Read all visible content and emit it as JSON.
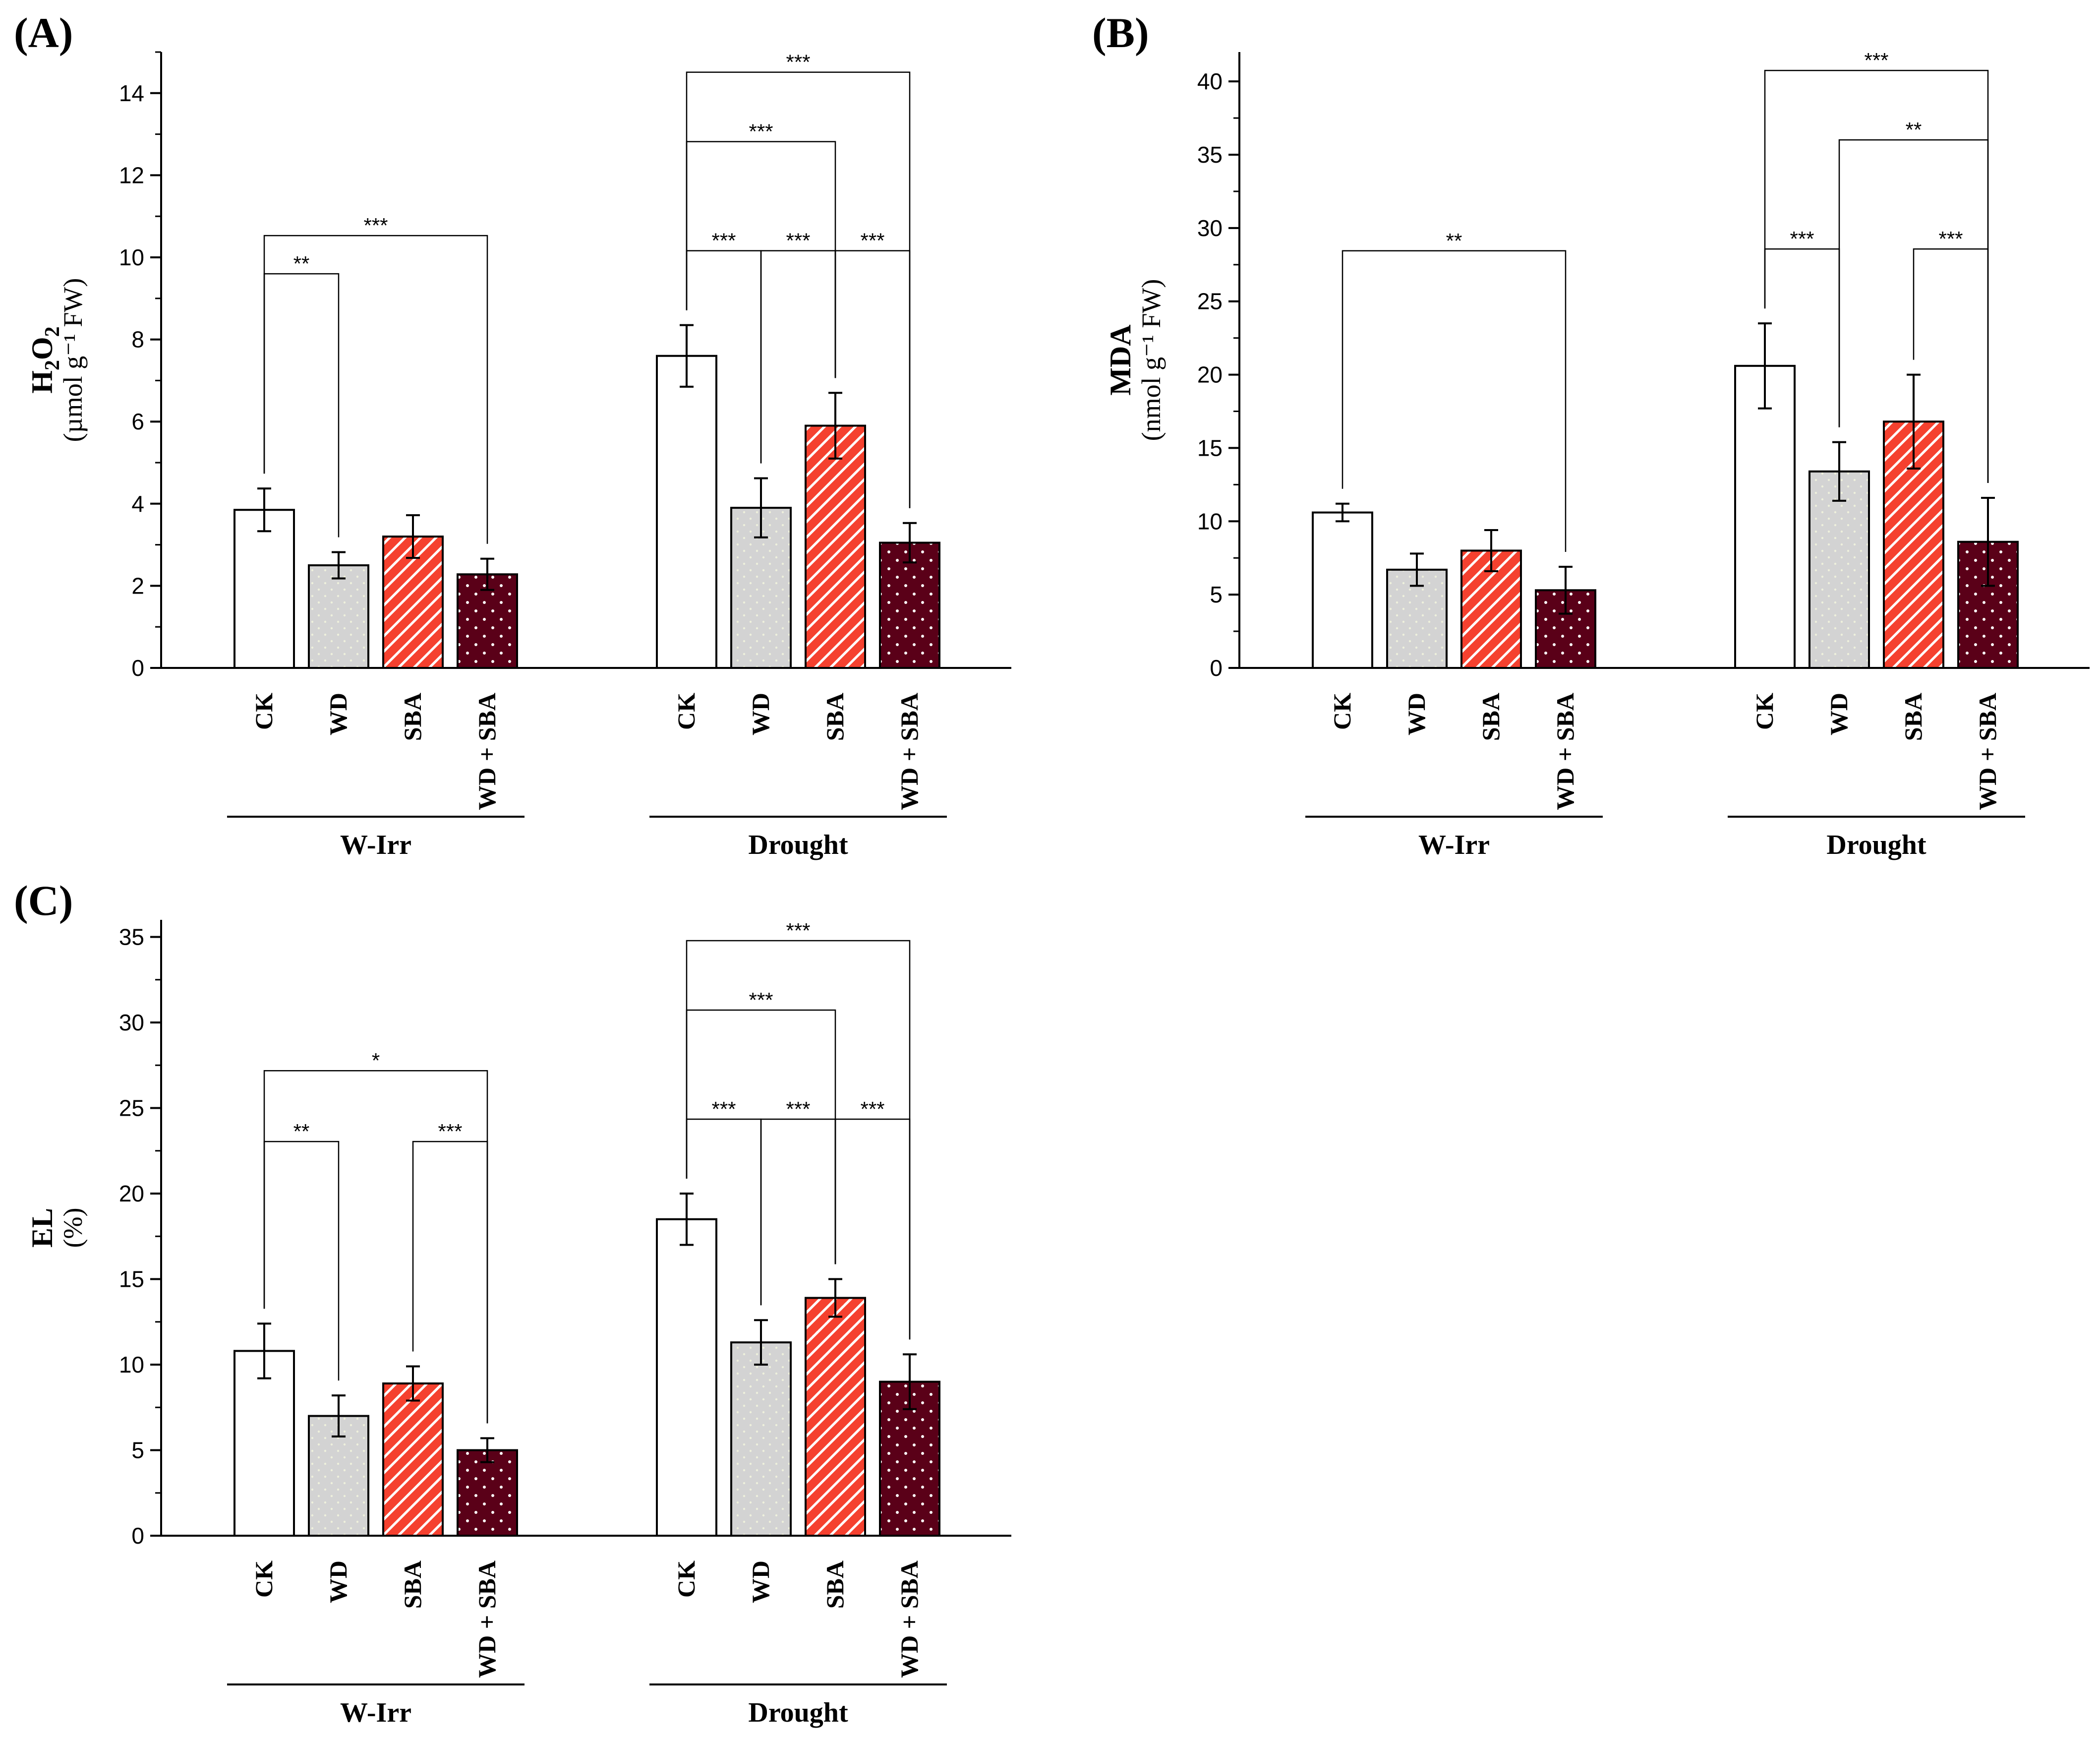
{
  "colors": {
    "CK": "#ffffff",
    "WD": "#d3d3d3",
    "SBA": "#f5412f",
    "WD + SBA": "#5a0018",
    "axis": "#000000"
  },
  "patterns": {
    "CK": "none",
    "WD": "dots",
    "SBA": "diagonal-stripes",
    "WD + SBA": "dots"
  },
  "chart_data": [
    {
      "panel": "(A)",
      "type": "bar",
      "ylabel_main": "H2O2",
      "ylabel_unit": "(µmol g⁻¹ FW)",
      "ylim": [
        0,
        15
      ],
      "yticks": [
        0,
        2,
        4,
        6,
        8,
        10,
        12,
        14
      ],
      "groups": [
        {
          "name": "W-Irr",
          "categories": [
            "CK",
            "WD",
            "SBA",
            "WD + SBA"
          ],
          "values": [
            3.85,
            2.5,
            3.2,
            2.28
          ],
          "errors": [
            0.52,
            0.32,
            0.52,
            0.38
          ]
        },
        {
          "name": "Drought",
          "categories": [
            "CK",
            "WD",
            "SBA",
            "WD + SBA"
          ],
          "values": [
            7.6,
            3.9,
            5.9,
            3.05
          ],
          "errors": [
            0.75,
            0.72,
            0.8,
            0.48
          ]
        }
      ],
      "significance": [
        {
          "group": 0,
          "from": 0,
          "to": 3,
          "label": "***"
        },
        {
          "group": 0,
          "from": 0,
          "to": 1,
          "label": "**"
        },
        {
          "group": 1,
          "from": 0,
          "to": 3,
          "label": "***"
        },
        {
          "group": 1,
          "from": 0,
          "to": 2,
          "label": "***"
        },
        {
          "group": 1,
          "from": 0,
          "to": 1,
          "label": "***"
        },
        {
          "group": 1,
          "from": 1,
          "to": 2,
          "label": "***"
        },
        {
          "group": 1,
          "from": 2,
          "to": 3,
          "label": "***"
        }
      ]
    },
    {
      "panel": "(B)",
      "type": "bar",
      "ylabel_main": "MDA",
      "ylabel_unit": "(nmol g⁻¹ FW)",
      "ylim": [
        0,
        42
      ],
      "yticks": [
        0,
        5,
        10,
        15,
        20,
        25,
        30,
        35,
        40
      ],
      "groups": [
        {
          "name": "W-Irr",
          "categories": [
            "CK",
            "WD",
            "SBA",
            "WD + SBA"
          ],
          "values": [
            10.6,
            6.7,
            8.0,
            5.3
          ],
          "errors": [
            0.6,
            1.1,
            1.4,
            1.6
          ]
        },
        {
          "name": "Drought",
          "categories": [
            "CK",
            "WD",
            "SBA",
            "WD + SBA"
          ],
          "values": [
            20.6,
            13.4,
            16.8,
            8.6
          ],
          "errors": [
            2.9,
            2.0,
            3.2,
            3.0
          ]
        }
      ],
      "significance": [
        {
          "group": 0,
          "from": 0,
          "to": 3,
          "label": "**"
        },
        {
          "group": 1,
          "from": 0,
          "to": 3,
          "label": "***"
        },
        {
          "group": 1,
          "from": 1,
          "to": 3,
          "label": "**"
        },
        {
          "group": 1,
          "from": 0,
          "to": 1,
          "label": "***"
        },
        {
          "group": 1,
          "from": 2,
          "to": 3,
          "label": "***"
        }
      ]
    },
    {
      "panel": "(C)",
      "type": "bar",
      "ylabel_main": "EL",
      "ylabel_unit": "(%)",
      "ylim": [
        0,
        36
      ],
      "yticks": [
        0,
        5,
        10,
        15,
        20,
        25,
        30,
        35
      ],
      "groups": [
        {
          "name": "W-Irr",
          "categories": [
            "CK",
            "WD",
            "SBA",
            "WD + SBA"
          ],
          "values": [
            10.8,
            7.0,
            8.9,
            5.0
          ],
          "errors": [
            1.6,
            1.2,
            1.0,
            0.7
          ]
        },
        {
          "name": "Drought",
          "categories": [
            "CK",
            "WD",
            "SBA",
            "WD + SBA"
          ],
          "values": [
            18.5,
            11.3,
            13.9,
            9.0
          ],
          "errors": [
            1.5,
            1.3,
            1.1,
            1.6
          ]
        }
      ],
      "significance": [
        {
          "group": 0,
          "from": 0,
          "to": 3,
          "label": "*"
        },
        {
          "group": 0,
          "from": 0,
          "to": 1,
          "label": "**"
        },
        {
          "group": 0,
          "from": 2,
          "to": 3,
          "label": "***"
        },
        {
          "group": 1,
          "from": 0,
          "to": 3,
          "label": "***"
        },
        {
          "group": 1,
          "from": 0,
          "to": 2,
          "label": "***"
        },
        {
          "group": 1,
          "from": 0,
          "to": 1,
          "label": "***"
        },
        {
          "group": 1,
          "from": 1,
          "to": 2,
          "label": "***"
        },
        {
          "group": 1,
          "from": 2,
          "to": 3,
          "label": "***"
        }
      ]
    }
  ]
}
